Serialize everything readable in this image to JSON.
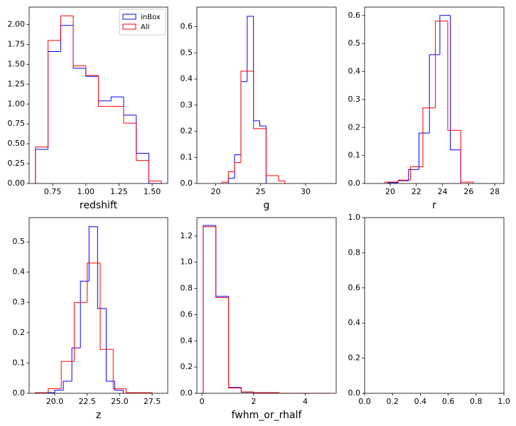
{
  "chart_data": [
    {
      "type": "hist",
      "xlabel": "redshift",
      "xlim": [
        0.5725,
        1.6175
      ],
      "ylim": [
        0,
        2.22
      ],
      "xticks": [
        0.75,
        {
          "value": 1.0,
          "label": "1.00"
        },
        1.25,
        {
          "value": 1.5,
          "label": "1.50"
        }
      ],
      "yticks": [
        {
          "value": 0,
          "label": "0.00"
        },
        0.25,
        {
          "value": 0.5,
          "label": "0.50"
        },
        0.75,
        {
          "value": 1.0,
          "label": "1.00"
        },
        1.25,
        {
          "value": 1.5,
          "label": "1.50"
        },
        1.75,
        {
          "value": 2.0,
          "label": "2.00"
        }
      ],
      "legend": "upper right",
      "series": [
        {
          "name": "inBox",
          "color": "#0000ff",
          "bins": [
            0.62,
            0.715,
            0.81,
            0.905,
            1.0,
            1.095,
            1.19,
            1.285,
            1.38,
            1.475,
            1.57
          ],
          "values": [
            0.43,
            1.66,
            1.99,
            1.45,
            1.35,
            1.04,
            1.09,
            0.86,
            0.38,
            0
          ]
        },
        {
          "name": "All",
          "color": "#ff0000",
          "bins": [
            0.62,
            0.715,
            0.81,
            0.905,
            1.0,
            1.095,
            1.19,
            1.285,
            1.38,
            1.475,
            1.57
          ],
          "values": [
            0.46,
            1.8,
            2.11,
            1.48,
            1.36,
            0.97,
            0.97,
            0.76,
            0.29,
            0.03
          ]
        }
      ]
    },
    {
      "type": "hist",
      "xlabel": "g",
      "xlim": [
        17.9,
        33.4
      ],
      "ylim": [
        0,
        0.675
      ],
      "xticks": [
        20,
        25,
        30
      ],
      "yticks": [
        {
          "value": 0,
          "label": "0.0"
        },
        0.1,
        0.2,
        0.3,
        0.4,
        0.5,
        0.6
      ],
      "series": [
        {
          "color": "#0000ff",
          "bins": [
            21.4,
            22.1,
            22.8,
            23.5,
            24.2,
            24.9,
            25.6
          ],
          "values": [
            0.02,
            0.11,
            0.39,
            0.64,
            0.24,
            0.22
          ]
        },
        {
          "color": "#ff0000",
          "bins": [
            20.7,
            21.4,
            22.1,
            22.8,
            23.5,
            24.2,
            24.9,
            25.6,
            26.3,
            27.0,
            27.7
          ],
          "values": [
            0.005,
            0.045,
            0.08,
            0.43,
            0.43,
            0.21,
            0.21,
            0.03,
            0.03,
            0.01
          ]
        }
      ]
    },
    {
      "type": "hist",
      "xlabel": "r",
      "xlim": [
        18.04,
        28.7
      ],
      "ylim": [
        0,
        0.63
      ],
      "xticks": [
        20,
        22,
        24,
        26,
        28
      ],
      "yticks": [
        {
          "value": 0,
          "label": "0.0"
        },
        0.1,
        0.2,
        0.3,
        0.4,
        0.5,
        0.6
      ],
      "series": [
        {
          "color": "#0000ff",
          "bins": [
            19.8,
            20.6,
            21.4,
            22.2,
            23.0,
            23.8,
            24.6,
            25.4
          ],
          "values": [
            0.003,
            0.01,
            0.05,
            0.18,
            0.46,
            0.6,
            0.12
          ]
        },
        {
          "color": "#ff0000",
          "bins": [
            19.6,
            20.6,
            21.55,
            22.5,
            23.45,
            24.4,
            25.4,
            26.35
          ],
          "values": [
            0.005,
            0.012,
            0.06,
            0.27,
            0.58,
            0.19,
            0.005
          ]
        }
      ]
    },
    {
      "type": "hist",
      "xlabel": "z",
      "xlim": [
        18.03,
        28.7
      ],
      "ylim": [
        0,
        0.58
      ],
      "xticks": [
        {
          "value": 20,
          "label": "20.0"
        },
        22.5,
        {
          "value": 25,
          "label": "25.0"
        },
        27.5
      ],
      "yticks": [
        {
          "value": 0,
          "label": "0.0"
        },
        0.1,
        0.2,
        0.3,
        0.4,
        0.5
      ],
      "series": [
        {
          "color": "#0000ff",
          "bins": [
            19.34,
            20.0,
            20.66,
            21.32,
            21.98,
            22.64,
            23.3,
            23.96,
            24.62,
            25.28
          ],
          "values": [
            0.002,
            0.01,
            0.04,
            0.15,
            0.37,
            0.55,
            0.28,
            0.04,
            0.01
          ]
        },
        {
          "color": "#ff0000",
          "bins": [
            18.5,
            19.5,
            20.5,
            21.5,
            22.5,
            23.5,
            24.5,
            25.5,
            26.5,
            27.5
          ],
          "values": [
            0.002,
            0.015,
            0.105,
            0.3,
            0.43,
            0.145,
            0.015,
            0.002,
            0.002
          ]
        }
      ]
    },
    {
      "type": "hist",
      "xlabel": "fwhm_or_rhalf",
      "xlim": [
        -0.195,
        5.195
      ],
      "ylim": [
        0,
        1.34
      ],
      "xticks": [
        0,
        2,
        4
      ],
      "yticks": [
        {
          "value": 0,
          "label": "0.0"
        },
        0.2,
        0.4,
        0.6,
        0.8,
        {
          "value": 1.0,
          "label": "1.0"
        },
        1.2
      ],
      "series": [
        {
          "color": "#0000ff",
          "bins": [
            0.05,
            0.54,
            1.03,
            1.52,
            2.01,
            2.5,
            2.99,
            3.48,
            3.97,
            4.46,
            4.95
          ],
          "values": [
            1.28,
            0.74,
            0.045,
            0.008,
            0.004,
            0.004,
            0,
            0,
            0,
            0
          ]
        },
        {
          "color": "#ff0000",
          "bins": [
            0.05,
            0.54,
            1.03,
            1.52,
            2.01,
            2.5,
            2.99,
            3.48,
            3.97,
            4.46,
            4.95
          ],
          "values": [
            1.27,
            0.73,
            0.04,
            0.01,
            0.005,
            0.005,
            0,
            0,
            0,
            0
          ]
        }
      ]
    },
    {
      "type": "hist",
      "xlim": [
        0,
        1
      ],
      "ylim": [
        0,
        1
      ],
      "xticks": [
        {
          "value": 0,
          "label": "0.0"
        },
        0.2,
        0.4,
        0.6,
        0.8,
        {
          "value": 1,
          "label": "1.0"
        }
      ],
      "yticks": [
        {
          "value": 0,
          "label": "0.0"
        },
        0.2,
        0.4,
        0.6,
        0.8,
        {
          "value": 1,
          "label": "1.0"
        }
      ],
      "series": []
    }
  ]
}
